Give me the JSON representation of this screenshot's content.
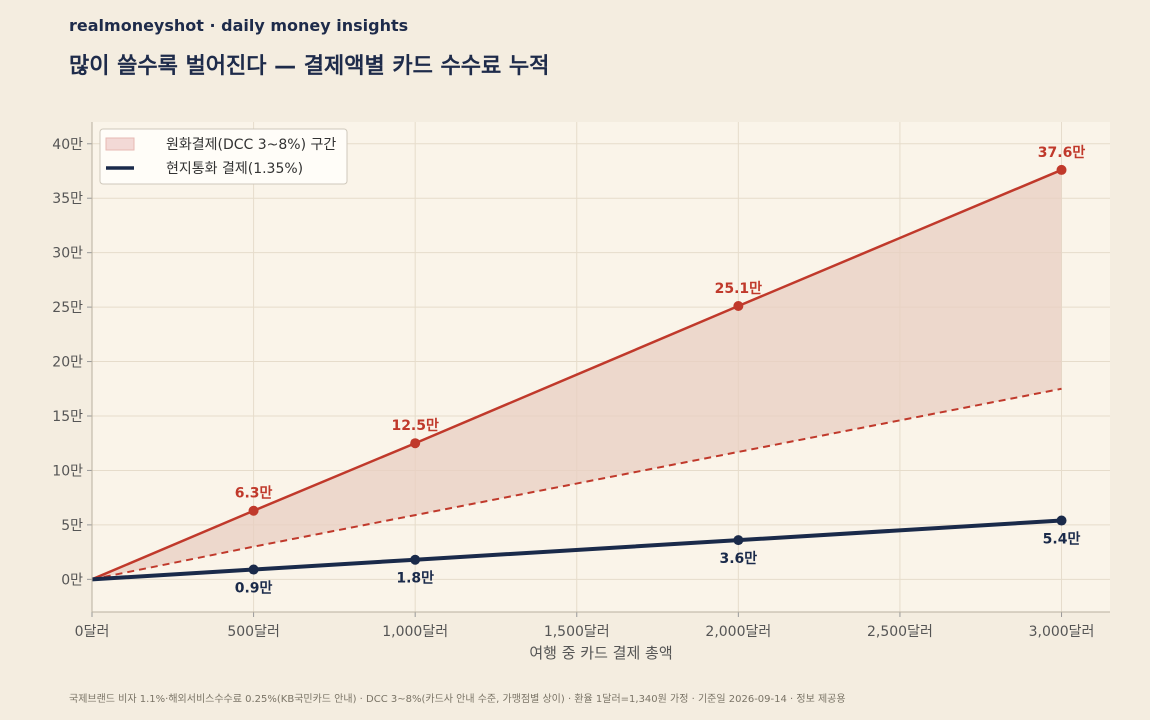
{
  "header": {
    "brand": "realmoneyshot · daily money insights",
    "title": "많이 쓸수록 벌어진다 — 결제액별 카드 수수료 누적"
  },
  "footnote": "국제브랜드 비자 1.1%·해외서비스수수료 0.25%(KB국민카드 안내) · DCC 3~8%(카드사 안내 수준, 가맹점별 상이) · 환율 1달러=1,340원 가정 · 기준일 2026-09-14 · 정보 제공용",
  "colors": {
    "background": "#f4ede0",
    "plot_background": "#faf4e9",
    "dcc": "#c0392b",
    "dcc_fill": "#e8cfc2",
    "local": "#1a2a4a",
    "text": "#1e2b4a"
  },
  "chart_data": {
    "type": "line",
    "xlabel": "여행 중 카드 결제 총액",
    "ylabel": "",
    "x": [
      0,
      500,
      1000,
      2000,
      3000
    ],
    "xlim": [
      0,
      3150
    ],
    "ylim": [
      -3,
      42
    ],
    "x_ticks": [
      0,
      500,
      1000,
      1500,
      2000,
      2500,
      3000
    ],
    "x_tick_labels": [
      "0달러",
      "500달러",
      "1,000달러",
      "1,500달러",
      "2,000달러",
      "2,500달러",
      "3,000달러"
    ],
    "y_ticks": [
      0,
      5,
      10,
      15,
      20,
      25,
      30,
      35,
      40
    ],
    "y_tick_labels": [
      "0만",
      "5만",
      "10만",
      "15만",
      "20만",
      "25만",
      "30만",
      "35만",
      "40만"
    ],
    "grid": true,
    "legend_position": "top-left",
    "series": [
      {
        "name": "현지통화 결제(1.35%)",
        "values": [
          0,
          0.9,
          1.8,
          3.6,
          5.4
        ],
        "labels": [
          "",
          "0.9만",
          "1.8만",
          "3.6만",
          "5.4만"
        ],
        "label_position": "below"
      },
      {
        "name": "원화결제(DCC 3~8%) 구간",
        "band_low": [
          0,
          3.0,
          5.9,
          11.7,
          17.5
        ],
        "values": [
          0,
          6.3,
          12.5,
          25.1,
          37.6
        ],
        "labels": [
          "",
          "6.3만",
          "12.5만",
          "25.1만",
          "37.6만"
        ],
        "label_position": "above"
      }
    ]
  }
}
